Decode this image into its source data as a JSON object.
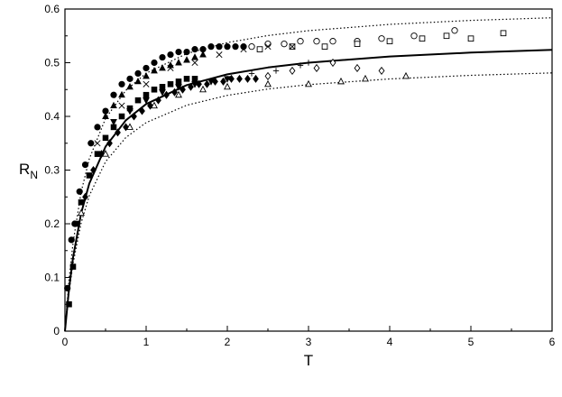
{
  "chart_data": {
    "type": "scatter",
    "title": "",
    "xlabel": "T",
    "ylabel": "R",
    "ylabel_subscript": "N",
    "xlim": [
      0,
      6
    ],
    "ylim": [
      0,
      0.6
    ],
    "xticks": [
      "0",
      "1",
      "2",
      "3",
      "4",
      "5",
      "6"
    ],
    "yticks": [
      "0",
      "0.1",
      "0.2",
      "0.3",
      "0.4",
      "0.5",
      "0.6"
    ],
    "grid": false,
    "legend": "none",
    "curves": [
      {
        "style": "solid",
        "k": 0.55,
        "T0": 0.3,
        "x": [
          0.0,
          0.05,
          0.1,
          0.2,
          0.3,
          0.5,
          0.75,
          1.0,
          1.5,
          2.0,
          2.5,
          3.0,
          4.0,
          5.0,
          6.0
        ]
      },
      {
        "style": "dotted",
        "k": 0.61,
        "T0": 0.27,
        "x": [
          0.0,
          0.05,
          0.1,
          0.2,
          0.3,
          0.5,
          0.75,
          1.0,
          1.5,
          2.0,
          2.5,
          3.0,
          4.0,
          5.0,
          6.0
        ]
      },
      {
        "style": "dotted",
        "k": 0.505,
        "T0": 0.3,
        "x": [
          0.0,
          0.05,
          0.1,
          0.2,
          0.3,
          0.5,
          0.75,
          1.0,
          1.5,
          2.0,
          2.5,
          3.0,
          4.0,
          5.0,
          6.0
        ]
      }
    ],
    "series": [
      {
        "marker": "filled-circle",
        "x": [
          0.03,
          0.08,
          0.12,
          0.18,
          0.25,
          0.32,
          0.4,
          0.5,
          0.6,
          0.7,
          0.8,
          0.9,
          1.0,
          1.1,
          1.2,
          1.3,
          1.4,
          1.5,
          1.6,
          1.7,
          1.8,
          1.9,
          2.0,
          2.1,
          2.2
        ],
        "y": [
          0.08,
          0.17,
          0.2,
          0.26,
          0.31,
          0.35,
          0.38,
          0.41,
          0.44,
          0.46,
          0.47,
          0.48,
          0.49,
          0.5,
          0.51,
          0.515,
          0.52,
          0.52,
          0.525,
          0.525,
          0.53,
          0.53,
          0.53,
          0.53,
          0.53
        ]
      },
      {
        "marker": "filled-triangle",
        "x": [
          0.5,
          0.6,
          0.7,
          0.8,
          0.9,
          1.0,
          1.1,
          1.2,
          1.3,
          1.4,
          1.5,
          1.6,
          1.7
        ],
        "y": [
          0.4,
          0.42,
          0.44,
          0.455,
          0.465,
          0.475,
          0.485,
          0.49,
          0.495,
          0.5,
          0.505,
          0.51,
          0.515
        ]
      },
      {
        "marker": "filled-square",
        "x": [
          0.05,
          0.1,
          0.15,
          0.2,
          0.3,
          0.4,
          0.5,
          0.6,
          0.7,
          0.8,
          0.9,
          1.0,
          1.1,
          1.2,
          1.3,
          1.4,
          1.5,
          1.6
        ],
        "y": [
          0.05,
          0.12,
          0.2,
          0.24,
          0.29,
          0.33,
          0.36,
          0.38,
          0.4,
          0.415,
          0.43,
          0.44,
          0.45,
          0.455,
          0.46,
          0.465,
          0.47,
          0.47
        ]
      },
      {
        "marker": "filled-diamond",
        "x": [
          0.25,
          0.35,
          0.45,
          0.55,
          0.65,
          0.75,
          0.85,
          0.95,
          1.05,
          1.15,
          1.25,
          1.35,
          1.45,
          1.55,
          1.65,
          1.75,
          1.85,
          1.95,
          2.05,
          2.15,
          2.25,
          2.35
        ],
        "y": [
          0.25,
          0.3,
          0.33,
          0.35,
          0.37,
          0.38,
          0.4,
          0.41,
          0.42,
          0.43,
          0.44,
          0.445,
          0.45,
          0.455,
          0.46,
          0.46,
          0.465,
          0.465,
          0.47,
          0.47,
          0.47,
          0.47
        ]
      },
      {
        "marker": "filled-inverted-triangle",
        "x": [
          0.6,
          0.8,
          1.0,
          1.2,
          1.4,
          1.6,
          1.8,
          2.0
        ],
        "y": [
          0.39,
          0.41,
          0.43,
          0.445,
          0.455,
          0.46,
          0.465,
          0.47
        ]
      },
      {
        "marker": "open-circle",
        "x": [
          2.3,
          2.5,
          2.7,
          2.9,
          3.1,
          3.3,
          3.6,
          3.9,
          4.3,
          4.8
        ],
        "y": [
          0.53,
          0.535,
          0.535,
          0.54,
          0.54,
          0.54,
          0.54,
          0.545,
          0.55,
          0.56
        ]
      },
      {
        "marker": "open-square",
        "x": [
          2.4,
          2.8,
          3.2,
          3.6,
          4.0,
          4.4,
          4.7,
          5.0,
          5.4
        ],
        "y": [
          0.525,
          0.53,
          0.53,
          0.535,
          0.54,
          0.545,
          0.55,
          0.545,
          0.555
        ]
      },
      {
        "marker": "cross",
        "x": [
          0.4,
          0.7,
          1.0,
          1.3,
          1.6,
          1.9,
          2.2,
          2.5,
          2.8
        ],
        "y": [
          0.35,
          0.42,
          0.46,
          0.49,
          0.5,
          0.515,
          0.525,
          0.53,
          0.53
        ]
      },
      {
        "marker": "plus",
        "x": [
          2.0,
          2.3,
          2.6,
          2.9,
          3.0
        ],
        "y": [
          0.47,
          0.48,
          0.485,
          0.495,
          0.5
        ]
      },
      {
        "marker": "open-diamond",
        "x": [
          2.5,
          2.8,
          3.1,
          3.3,
          3.6,
          3.9
        ],
        "y": [
          0.475,
          0.485,
          0.49,
          0.5,
          0.49,
          0.485
        ]
      },
      {
        "marker": "open-triangle",
        "x": [
          0.2,
          0.5,
          0.8,
          1.1,
          1.4,
          1.7,
          2.0,
          2.5,
          3.0,
          3.4,
          3.7,
          4.2
        ],
        "y": [
          0.22,
          0.33,
          0.38,
          0.42,
          0.44,
          0.45,
          0.455,
          0.46,
          0.46,
          0.465,
          0.47,
          0.475
        ]
      }
    ]
  }
}
